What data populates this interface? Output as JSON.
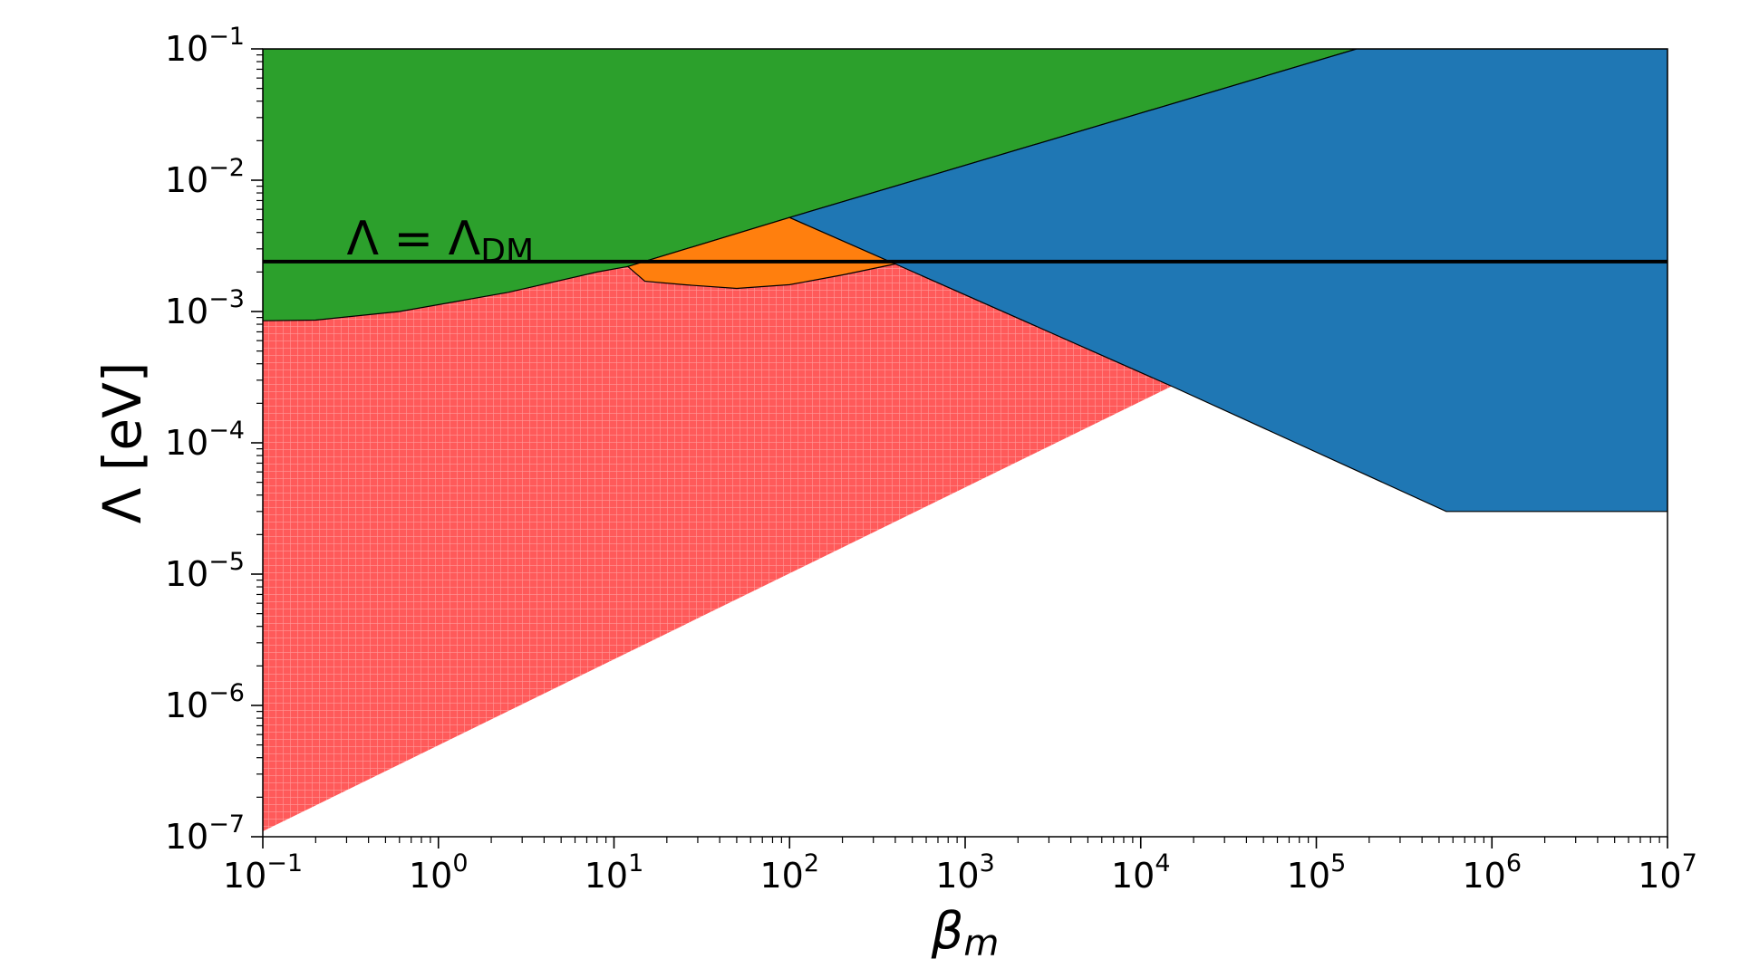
{
  "chart_data": {
    "type": "area",
    "title": "",
    "xlabel": "β",
    "xlabel_sub": "m",
    "ylabel": "Λ [eV]",
    "x_scale": "log",
    "y_scale": "log",
    "xlim": [
      0.1,
      10000000
    ],
    "ylim": [
      1e-07,
      0.1
    ],
    "grid": false,
    "x_ticks": [
      {
        "value": 0.1,
        "base": "10",
        "exp": "−1"
      },
      {
        "value": 1,
        "base": "10",
        "exp": "0"
      },
      {
        "value": 10,
        "base": "10",
        "exp": "1"
      },
      {
        "value": 100,
        "base": "10",
        "exp": "2"
      },
      {
        "value": 1000,
        "base": "10",
        "exp": "3"
      },
      {
        "value": 10000,
        "base": "10",
        "exp": "4"
      },
      {
        "value": 100000,
        "base": "10",
        "exp": "5"
      },
      {
        "value": 1000000,
        "base": "10",
        "exp": "6"
      },
      {
        "value": 10000000,
        "base": "10",
        "exp": "7"
      }
    ],
    "y_ticks": [
      {
        "value": 1e-07,
        "base": "10",
        "exp": "−7"
      },
      {
        "value": 1e-06,
        "base": "10",
        "exp": "−6"
      },
      {
        "value": 1e-05,
        "base": "10",
        "exp": "−5"
      },
      {
        "value": 0.0001,
        "base": "10",
        "exp": "−4"
      },
      {
        "value": 0.001,
        "base": "10",
        "exp": "−3"
      },
      {
        "value": 0.01,
        "base": "10",
        "exp": "−2"
      },
      {
        "value": 0.1,
        "base": "10",
        "exp": "−1"
      }
    ],
    "regions": [
      {
        "id": "red-hatched-region",
        "color": "#ff5a5a",
        "hatch": true,
        "points": [
          [
            0.1,
            1.1e-07
          ],
          [
            0.1,
            0.00085
          ],
          [
            0.2,
            0.00086
          ],
          [
            0.6,
            0.001
          ],
          [
            2.5,
            0.0014
          ],
          [
            8,
            0.002
          ],
          [
            12,
            0.0022
          ],
          [
            15,
            0.0017
          ],
          [
            25,
            0.0016
          ],
          [
            50,
            0.0015
          ],
          [
            100,
            0.0016
          ],
          [
            200,
            0.0019
          ],
          [
            400,
            0.0023
          ],
          [
            15000,
            0.00027
          ]
        ]
      },
      {
        "id": "green-region",
        "color": "#2ca02c",
        "hatch": false,
        "points": [
          [
            0.1,
            0.1
          ],
          [
            170000,
            0.1
          ],
          [
            100,
            0.0052
          ],
          [
            12,
            0.0022
          ],
          [
            8,
            0.002
          ],
          [
            2.5,
            0.0014
          ],
          [
            0.6,
            0.001
          ],
          [
            0.2,
            0.00086
          ],
          [
            0.1,
            0.00085
          ]
        ]
      },
      {
        "id": "orange-region",
        "color": "#ff7f0e",
        "hatch": false,
        "points": [
          [
            12,
            0.0022
          ],
          [
            100,
            0.0052
          ],
          [
            400,
            0.0023
          ],
          [
            200,
            0.0019
          ],
          [
            100,
            0.0016
          ],
          [
            50,
            0.0015
          ],
          [
            25,
            0.0016
          ],
          [
            15,
            0.0017
          ]
        ]
      },
      {
        "id": "blue-region",
        "color": "#1f77b4",
        "hatch": false,
        "points": [
          [
            100,
            0.0052
          ],
          [
            170000,
            0.1
          ],
          [
            10000000,
            0.1
          ],
          [
            10000000,
            3e-05
          ],
          [
            550000,
            3e-05
          ],
          [
            15000,
            0.00027
          ],
          [
            400,
            0.0023
          ]
        ]
      }
    ],
    "hlines": [
      {
        "id": "lambda-dm-line",
        "y": 0.0024,
        "color": "#000000",
        "label_main": "Λ = Λ",
        "label_sub": "DM",
        "label_x": 0.3
      }
    ]
  }
}
